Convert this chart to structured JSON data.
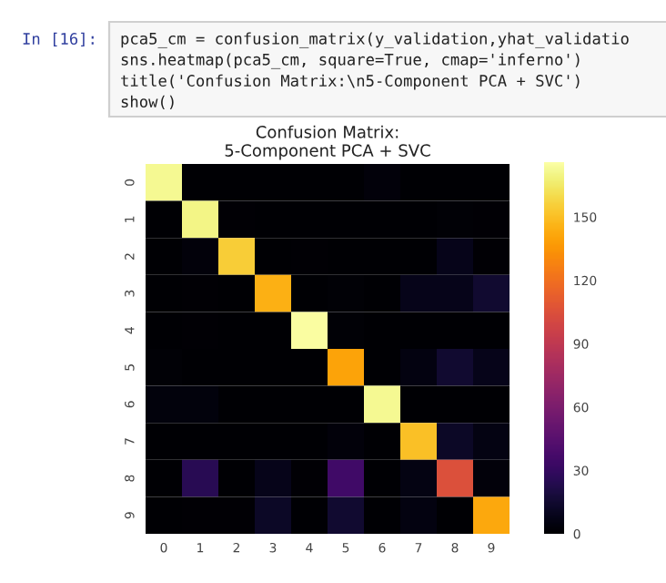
{
  "chart_data": {
    "type": "heatmap",
    "title": "Confusion Matrix:\n5-Component PCA + SVC",
    "categories": [
      "0",
      "1",
      "2",
      "3",
      "4",
      "5",
      "6",
      "7",
      "8",
      "9"
    ],
    "y_categories": [
      "0",
      "1",
      "2",
      "3",
      "4",
      "5",
      "6",
      "7",
      "8",
      "9"
    ],
    "cells": [
      [
        172,
        0,
        0,
        0,
        0,
        0,
        3,
        0,
        0,
        0
      ],
      [
        0,
        170,
        1,
        0,
        0,
        0,
        0,
        0,
        2,
        1
      ],
      [
        0,
        3,
        155,
        0,
        1,
        0,
        0,
        0,
        8,
        1
      ],
      [
        0,
        1,
        0,
        145,
        0,
        2,
        0,
        8,
        8,
        15
      ],
      [
        0,
        1,
        0,
        0,
        175,
        2,
        0,
        0,
        0,
        0
      ],
      [
        2,
        0,
        0,
        0,
        0,
        140,
        0,
        5,
        15,
        8
      ],
      [
        4,
        4,
        0,
        0,
        0,
        0,
        172,
        0,
        0,
        0
      ],
      [
        0,
        0,
        0,
        0,
        0,
        3,
        0,
        150,
        12,
        6
      ],
      [
        0,
        25,
        0,
        8,
        1,
        35,
        0,
        6,
        105,
        3
      ],
      [
        0,
        1,
        1,
        12,
        0,
        15,
        0,
        5,
        0,
        142
      ]
    ],
    "clim": [
      0,
      176
    ],
    "cticks": [
      0,
      30,
      60,
      90,
      120,
      150
    ],
    "annotations": [
      "In [16]:",
      "pca5_cm = confusion_matrix(y_validation,yhat_validatio",
      "sns.heatmap(pca5_cm, square=True, cmap='inferno')",
      "title('Confusion Matrix:\\n5-Component PCA + SVC')",
      "show()"
    ]
  }
}
